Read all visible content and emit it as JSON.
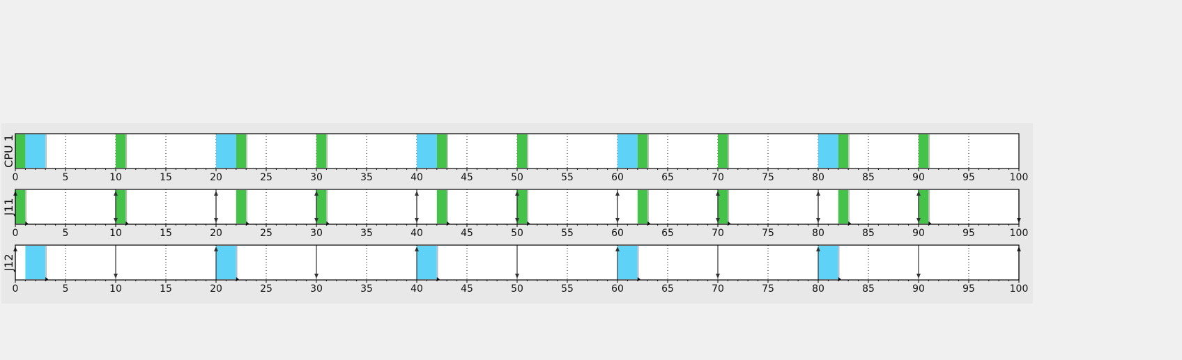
{
  "chart_data": {
    "type": "gantt",
    "x_range": [
      0,
      100
    ],
    "tick_step": 5,
    "tick_labels": [
      "0",
      "5",
      "10",
      "15",
      "20",
      "25",
      "30",
      "35",
      "40",
      "45",
      "50",
      "55",
      "60",
      "65",
      "70",
      "75",
      "80",
      "85",
      "90",
      "95",
      "100"
    ],
    "minor_tick_step": 1,
    "grid": "dotted vertical lines every 5 units",
    "colors": {
      "J11": "#44c24a",
      "J12": "#5fd2f8",
      "panel_bg": "#e8e8e8",
      "row_bg": "#ffffff",
      "axis": "#000000"
    },
    "rows": [
      {
        "label": "CPU 1",
        "segments": [
          {
            "job": "J11",
            "start": 0,
            "end": 1
          },
          {
            "job": "J12",
            "start": 1,
            "end": 3
          },
          {
            "job": "J11",
            "start": 10,
            "end": 11
          },
          {
            "job": "J12",
            "start": 20,
            "end": 22
          },
          {
            "job": "J11",
            "start": 22,
            "end": 23
          },
          {
            "job": "J11",
            "start": 30,
            "end": 31
          },
          {
            "job": "J12",
            "start": 40,
            "end": 42
          },
          {
            "job": "J11",
            "start": 42,
            "end": 43
          },
          {
            "job": "J11",
            "start": 50,
            "end": 51
          },
          {
            "job": "J12",
            "start": 60,
            "end": 62
          },
          {
            "job": "J11",
            "start": 62,
            "end": 63
          },
          {
            "job": "J11",
            "start": 70,
            "end": 71
          },
          {
            "job": "J12",
            "start": 80,
            "end": 82
          },
          {
            "job": "J11",
            "start": 82,
            "end": 83
          },
          {
            "job": "J11",
            "start": 90,
            "end": 91
          }
        ],
        "releases": [],
        "deadlines": []
      },
      {
        "label": "J11",
        "segments": [
          {
            "job": "J11",
            "start": 0,
            "end": 1
          },
          {
            "job": "J11",
            "start": 10,
            "end": 11
          },
          {
            "job": "J11",
            "start": 22,
            "end": 23
          },
          {
            "job": "J11",
            "start": 30,
            "end": 31
          },
          {
            "job": "J11",
            "start": 42,
            "end": 43
          },
          {
            "job": "J11",
            "start": 50,
            "end": 51
          },
          {
            "job": "J11",
            "start": 62,
            "end": 63
          },
          {
            "job": "J11",
            "start": 70,
            "end": 71
          },
          {
            "job": "J11",
            "start": 82,
            "end": 83
          },
          {
            "job": "J11",
            "start": 90,
            "end": 91
          }
        ],
        "releases": [
          0,
          10,
          20,
          30,
          40,
          50,
          60,
          70,
          80,
          90
        ],
        "deadlines": [
          10,
          20,
          30,
          40,
          50,
          60,
          70,
          80,
          90,
          100
        ],
        "completions": [
          1,
          11,
          23,
          31,
          43,
          51,
          63,
          71,
          83,
          91
        ]
      },
      {
        "label": "J12",
        "segments": [
          {
            "job": "J12",
            "start": 1,
            "end": 3
          },
          {
            "job": "J12",
            "start": 20,
            "end": 22
          },
          {
            "job": "J12",
            "start": 40,
            "end": 42
          },
          {
            "job": "J12",
            "start": 60,
            "end": 62
          },
          {
            "job": "J12",
            "start": 80,
            "end": 82
          }
        ],
        "releases": [
          0,
          20,
          40,
          60,
          80,
          100
        ],
        "deadlines": [
          10,
          30,
          50,
          70,
          90
        ],
        "completions": [
          3,
          22,
          42,
          62,
          82
        ]
      }
    ]
  }
}
